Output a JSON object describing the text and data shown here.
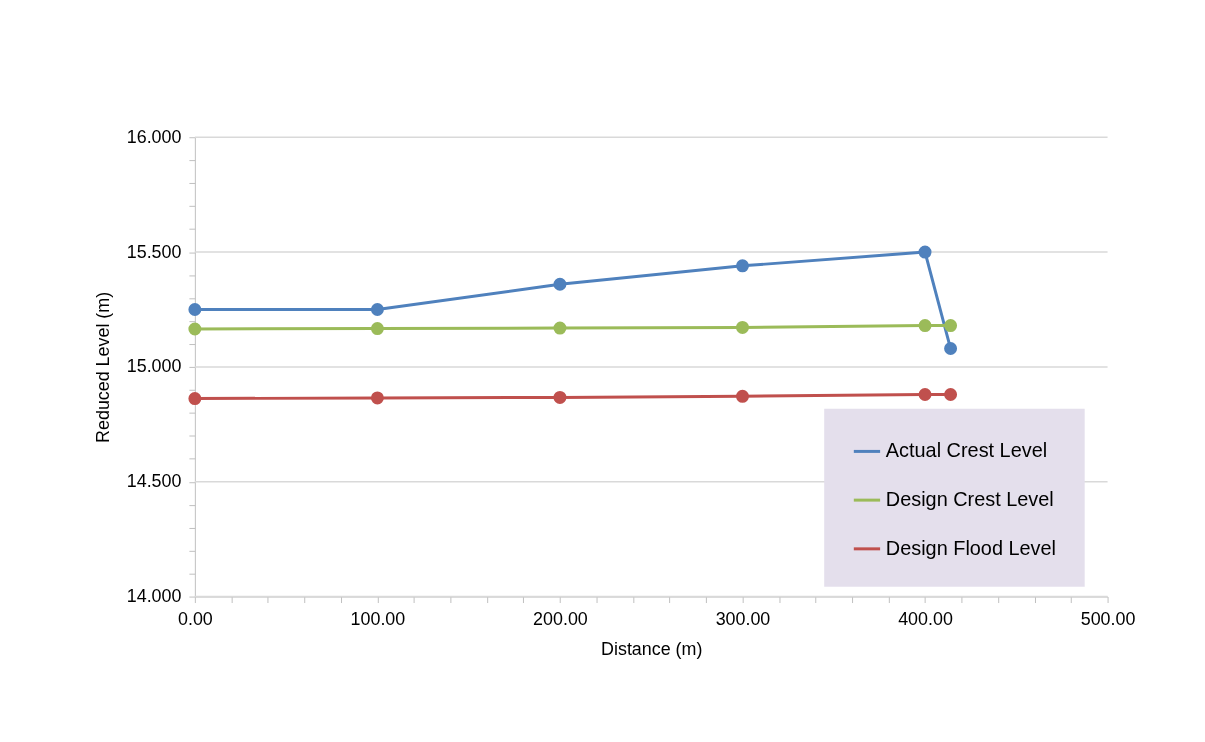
{
  "chart_data": {
    "type": "line",
    "xlabel": "Distance (m)",
    "ylabel": "Reduced Level (m)",
    "x": [
      0,
      100,
      200,
      300,
      400,
      414
    ],
    "series": [
      {
        "name": "Actual Crest Level",
        "color": "#4f81bd",
        "values": [
          15.25,
          15.25,
          15.36,
          15.44,
          15.5,
          15.08
        ]
      },
      {
        "name": "Design Crest Level",
        "color": "#9bbb59",
        "values": [
          15.165,
          15.167,
          15.169,
          15.172,
          15.18,
          15.18
        ]
      },
      {
        "name": "Design Flood Level",
        "color": "#c0504d",
        "values": [
          14.862,
          14.865,
          14.867,
          14.872,
          14.88,
          14.88
        ]
      }
    ],
    "xlim": [
      0,
      500
    ],
    "xticks": [
      {
        "value": 0,
        "label": "0.00"
      },
      {
        "value": 100,
        "label": "100.00"
      },
      {
        "value": 200,
        "label": "200.00"
      },
      {
        "value": 300,
        "label": "300.00"
      },
      {
        "value": 400,
        "label": "400.00"
      },
      {
        "value": 500,
        "label": "500.00"
      }
    ],
    "ylim": [
      14,
      16
    ],
    "yticks": [
      {
        "value": 14,
        "label": "14.000"
      },
      {
        "value": 14.5,
        "label": "14.500"
      },
      {
        "value": 15,
        "label": "15.000"
      },
      {
        "value": 15.5,
        "label": "15.500"
      },
      {
        "value": 16,
        "label": "16.000"
      }
    ],
    "grid": "y",
    "legend": "bottom right",
    "marker": "circle",
    "line_style": "solid"
  }
}
